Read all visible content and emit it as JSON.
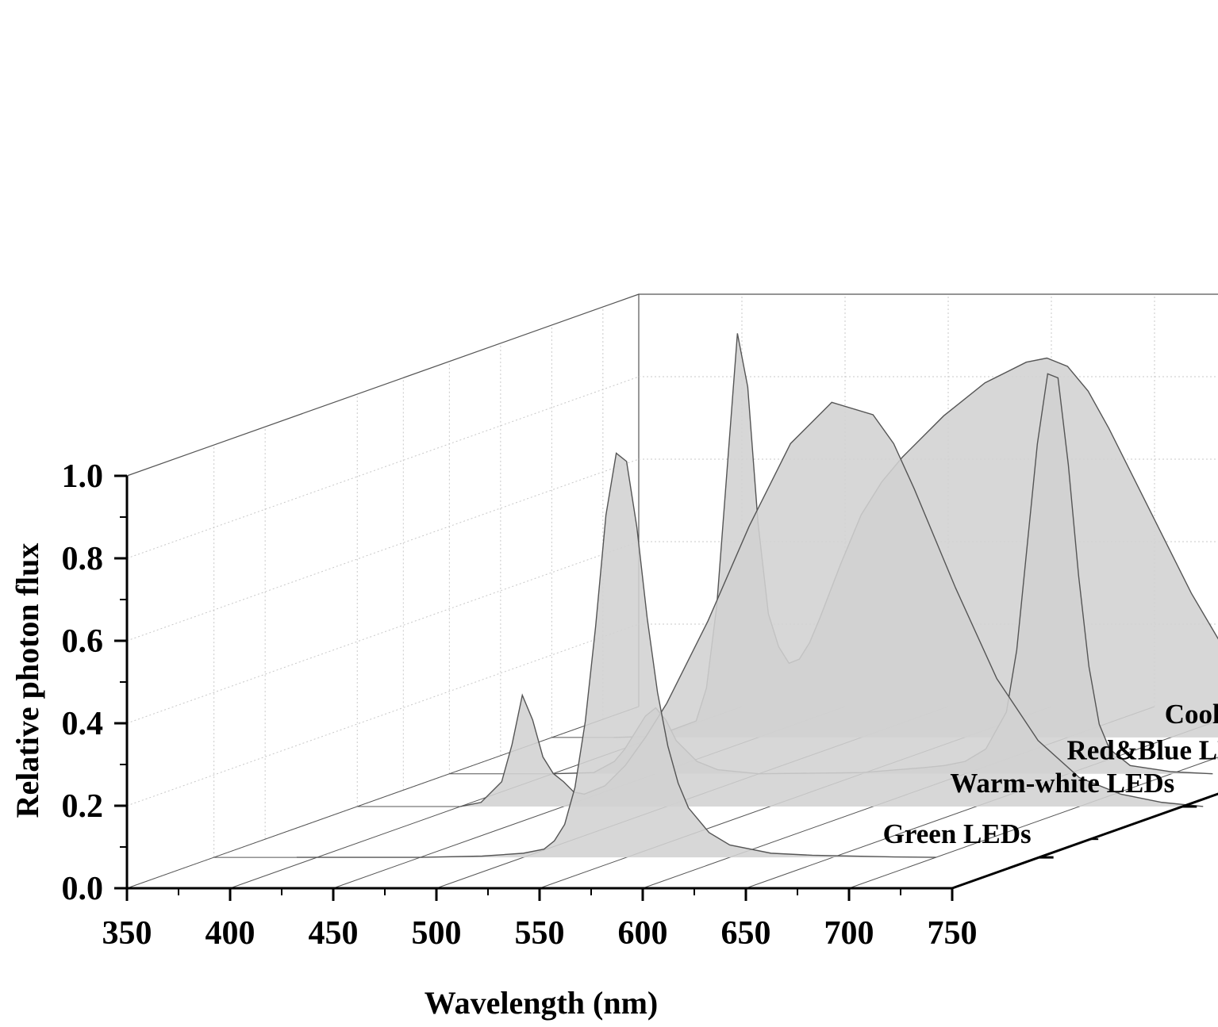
{
  "chart_data": {
    "type": "area",
    "subtype": "3d-waterfall",
    "xlabel": "Wavelength (nm)",
    "ylabel": "Relative photon flux",
    "xlim": [
      350,
      750
    ],
    "ylim": [
      0,
      1.0
    ],
    "x_ticks": [
      350,
      400,
      450,
      500,
      550,
      600,
      650,
      700,
      750
    ],
    "x_tick_labels": [
      "350",
      "400",
      "450",
      "500",
      "550",
      "600",
      "650",
      "700",
      "750"
    ],
    "y_ticks": [
      0.0,
      0.2,
      0.4,
      0.6,
      0.8,
      1.0
    ],
    "y_tick_labels": [
      "0.0",
      "0.2",
      "0.4",
      "0.6",
      "0.8",
      "1.0"
    ],
    "grid": true,
    "fill_color": "#d2d2d2",
    "line_color": "#555555",
    "series": [
      {
        "name": "Green LEDs",
        "label": "Green LEDs",
        "x": [
          390,
          450,
          480,
          500,
          510,
          515,
          520,
          525,
          530,
          535,
          540,
          545,
          550,
          555,
          560,
          565,
          570,
          575,
          580,
          590,
          600,
          620,
          640,
          680,
          700
        ],
        "y": [
          0,
          0,
          0.003,
          0.01,
          0.02,
          0.04,
          0.08,
          0.17,
          0.33,
          0.56,
          0.83,
          0.98,
          0.96,
          0.8,
          0.58,
          0.4,
          0.27,
          0.18,
          0.12,
          0.06,
          0.03,
          0.01,
          0.005,
          0.001,
          0
        ]
      },
      {
        "name": "Warm-white LEDs",
        "label": "Warm-white LEDs",
        "x": [
          400,
          410,
          420,
          425,
          430,
          435,
          440,
          445,
          450,
          455,
          460,
          470,
          480,
          490,
          500,
          520,
          540,
          560,
          580,
          600,
          610,
          620,
          640,
          660,
          680,
          700,
          720,
          740,
          760
        ],
        "y": [
          0,
          0.01,
          0.06,
          0.15,
          0.27,
          0.21,
          0.12,
          0.08,
          0.06,
          0.035,
          0.03,
          0.05,
          0.1,
          0.17,
          0.25,
          0.45,
          0.68,
          0.88,
          0.98,
          0.95,
          0.88,
          0.77,
          0.53,
          0.31,
          0.16,
          0.07,
          0.03,
          0.01,
          0
        ]
      },
      {
        "name": "Red&Blue LEDs",
        "label": "Red&Blue LEDs",
        "x": [
          400,
          420,
          430,
          435,
          440,
          445,
          450,
          455,
          460,
          470,
          480,
          500,
          550,
          580,
          590,
          600,
          610,
          620,
          625,
          630,
          635,
          640,
          645,
          650,
          655,
          660,
          665,
          670,
          680,
          700,
          720
        ],
        "y": [
          0,
          0.003,
          0.03,
          0.06,
          0.1,
          0.14,
          0.16,
          0.13,
          0.08,
          0.03,
          0.01,
          0,
          0.003,
          0.015,
          0.02,
          0.03,
          0.06,
          0.15,
          0.3,
          0.55,
          0.8,
          0.97,
          0.96,
          0.75,
          0.48,
          0.26,
          0.12,
          0.06,
          0.02,
          0.005,
          0
        ]
      },
      {
        "name": "Cool-white LEDs",
        "label": "Cool-white LEDs",
        "x": [
          380,
          400,
          420,
          425,
          430,
          435,
          440,
          445,
          450,
          455,
          460,
          465,
          470,
          475,
          480,
          490,
          500,
          510,
          520,
          540,
          560,
          580,
          590,
          600,
          610,
          620,
          640,
          660,
          680,
          700,
          720,
          740,
          750
        ],
        "y": [
          0,
          0.003,
          0.04,
          0.12,
          0.32,
          0.65,
          0.98,
          0.85,
          0.52,
          0.3,
          0.22,
          0.18,
          0.19,
          0.23,
          0.29,
          0.42,
          0.54,
          0.62,
          0.68,
          0.78,
          0.86,
          0.91,
          0.92,
          0.9,
          0.84,
          0.75,
          0.55,
          0.35,
          0.18,
          0.09,
          0.04,
          0.015,
          0.01
        ]
      }
    ]
  }
}
